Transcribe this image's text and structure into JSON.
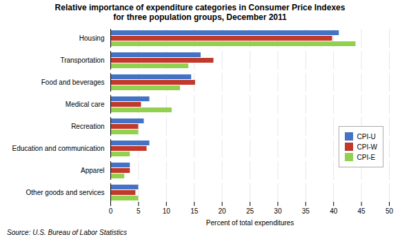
{
  "chart_data": {
    "type": "bar",
    "orientation": "horizontal",
    "title": "Relative importance of expenditure categories in Consumer Price Indexes\nfor three population groups, December 2011",
    "categories": [
      "Housing",
      "Transportation",
      "Food and beverages",
      "Medical care",
      "Recreation",
      "Education and communication",
      "Apparel",
      "Other goods and services"
    ],
    "series": [
      {
        "name": "CPI-U",
        "color": "#4472c4",
        "values": [
          41.0,
          16.2,
          14.5,
          7.0,
          6.0,
          7.0,
          3.5,
          5.0
        ]
      },
      {
        "name": "CPI-W",
        "color": "#c0392b",
        "values": [
          39.8,
          18.5,
          15.2,
          5.5,
          5.0,
          6.5,
          3.5,
          4.5
        ]
      },
      {
        "name": "CPI-E",
        "color": "#92d050",
        "values": [
          44.0,
          14.0,
          12.5,
          11.0,
          5.0,
          3.5,
          2.5,
          5.0
        ]
      }
    ],
    "xlabel": "Percent of total expenditures",
    "xlim": [
      0,
      50
    ],
    "xticks": [
      0,
      5,
      10,
      15,
      20,
      25,
      30,
      35,
      40,
      45,
      50
    ],
    "grid": true,
    "legend": "right",
    "source": "Source: U.S. Bureau of Labor Statistics"
  }
}
